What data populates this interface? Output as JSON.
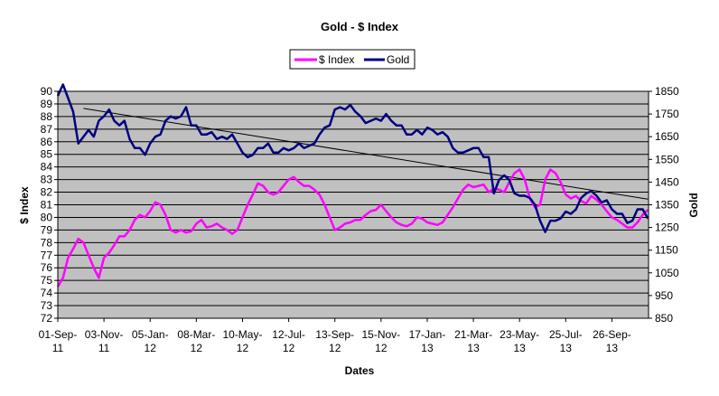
{
  "chart_data": {
    "type": "line",
    "title": "Gold - $ Index",
    "xlabel": "Dates",
    "ylabel": "$ Index",
    "y2label": "Gold",
    "ylim": [
      72,
      90
    ],
    "y2lim": [
      850,
      1850
    ],
    "yticks": [
      "72",
      "73",
      "74",
      "75",
      "76",
      "77",
      "78",
      "79",
      "80",
      "81",
      "82",
      "83",
      "84",
      "85",
      "86",
      "87",
      "88",
      "89",
      "90"
    ],
    "y2ticks": [
      "850",
      "950",
      "1050",
      "1150",
      "1250",
      "1350",
      "1450",
      "1550",
      "1650",
      "1750",
      "1850"
    ],
    "xticks": [
      {
        "date": "2011-09-01",
        "l1": "01-Sep-",
        "l2": "11"
      },
      {
        "date": "2011-11-03",
        "l1": "03-Nov-",
        "l2": "11"
      },
      {
        "date": "2012-01-05",
        "l1": "05-Jan-",
        "l2": "12"
      },
      {
        "date": "2012-03-08",
        "l1": "08-Mar-",
        "l2": "12"
      },
      {
        "date": "2012-05-10",
        "l1": "10-May-",
        "l2": "12"
      },
      {
        "date": "2012-07-12",
        "l1": "12-Jul-",
        "l2": "12"
      },
      {
        "date": "2012-09-13",
        "l1": "13-Sep-",
        "l2": "12"
      },
      {
        "date": "2012-11-15",
        "l1": "15-Nov-",
        "l2": "12"
      },
      {
        "date": "2013-01-17",
        "l1": "17-Jan-",
        "l2": "13"
      },
      {
        "date": "2013-03-21",
        "l1": "21-Mar-",
        "l2": "13"
      },
      {
        "date": "2013-05-23",
        "l1": "23-May-",
        "l2": "13"
      },
      {
        "date": "2013-07-25",
        "l1": "25-Jul-",
        "l2": "13"
      },
      {
        "date": "2013-09-26",
        "l1": "26-Sep-",
        "l2": "13"
      }
    ],
    "xlim": [
      "2011-09-01",
      "2013-11-15"
    ],
    "grid": true,
    "legend_position": "top-center",
    "plot_background": "#c0c0c0",
    "series": [
      {
        "name": "$ Index",
        "axis": "left",
        "color": "#ff00ff",
        "x": [
          "2011-09-01",
          "2011-09-08",
          "2011-09-15",
          "2011-09-22",
          "2011-09-29",
          "2011-10-06",
          "2011-10-13",
          "2011-10-20",
          "2011-10-27",
          "2011-11-03",
          "2011-11-10",
          "2011-11-17",
          "2011-11-24",
          "2011-12-01",
          "2011-12-08",
          "2011-12-15",
          "2011-12-22",
          "2011-12-29",
          "2012-01-05",
          "2012-01-12",
          "2012-01-19",
          "2012-01-26",
          "2012-02-02",
          "2012-02-09",
          "2012-02-16",
          "2012-02-23",
          "2012-03-01",
          "2012-03-08",
          "2012-03-15",
          "2012-03-22",
          "2012-03-29",
          "2012-04-05",
          "2012-04-12",
          "2012-04-19",
          "2012-04-26",
          "2012-05-03",
          "2012-05-10",
          "2012-05-17",
          "2012-05-24",
          "2012-05-31",
          "2012-06-07",
          "2012-06-14",
          "2012-06-21",
          "2012-06-28",
          "2012-07-05",
          "2012-07-12",
          "2012-07-19",
          "2012-07-26",
          "2012-08-02",
          "2012-08-09",
          "2012-08-16",
          "2012-08-23",
          "2012-08-30",
          "2012-09-06",
          "2012-09-13",
          "2012-09-20",
          "2012-09-27",
          "2012-10-04",
          "2012-10-11",
          "2012-10-18",
          "2012-10-25",
          "2012-11-01",
          "2012-11-08",
          "2012-11-15",
          "2012-11-22",
          "2012-11-29",
          "2012-12-06",
          "2012-12-13",
          "2012-12-20",
          "2012-12-27",
          "2013-01-03",
          "2013-01-10",
          "2013-01-17",
          "2013-01-24",
          "2013-01-31",
          "2013-02-07",
          "2013-02-14",
          "2013-02-21",
          "2013-02-28",
          "2013-03-07",
          "2013-03-14",
          "2013-03-21",
          "2013-03-28",
          "2013-04-04",
          "2013-04-11",
          "2013-04-18",
          "2013-04-25",
          "2013-05-02",
          "2013-05-09",
          "2013-05-16",
          "2013-05-23",
          "2013-05-30",
          "2013-06-06",
          "2013-06-13",
          "2013-06-20",
          "2013-06-27",
          "2013-07-04",
          "2013-07-11",
          "2013-07-18",
          "2013-07-25",
          "2013-08-01",
          "2013-08-08",
          "2013-08-15",
          "2013-08-22",
          "2013-08-29",
          "2013-09-05",
          "2013-09-12",
          "2013-09-19",
          "2013-09-26",
          "2013-10-03",
          "2013-10-10",
          "2013-10-17",
          "2013-10-24",
          "2013-10-31",
          "2013-11-07",
          "2013-11-14"
        ],
        "values": [
          74.5,
          75.2,
          76.8,
          77.5,
          78.3,
          78.0,
          77.0,
          76.0,
          75.2,
          76.8,
          77.2,
          77.8,
          78.5,
          78.5,
          79.0,
          79.8,
          80.2,
          80.0,
          80.5,
          81.2,
          81.0,
          80.2,
          79.0,
          78.8,
          79.0,
          78.8,
          78.9,
          79.5,
          79.8,
          79.2,
          79.3,
          79.5,
          79.2,
          79.0,
          78.7,
          79.0,
          80.0,
          81.0,
          81.8,
          82.7,
          82.5,
          82.0,
          81.8,
          82.0,
          82.5,
          83.0,
          83.2,
          82.8,
          82.5,
          82.5,
          82.2,
          81.8,
          81.0,
          80.0,
          79.0,
          79.2,
          79.5,
          79.6,
          79.8,
          79.8,
          80.2,
          80.5,
          80.6,
          81.0,
          80.5,
          80.0,
          79.6,
          79.4,
          79.3,
          79.5,
          80.0,
          79.9,
          79.6,
          79.5,
          79.4,
          79.6,
          80.2,
          80.8,
          81.5,
          82.2,
          82.6,
          82.4,
          82.5,
          82.6,
          82.0,
          82.3,
          82.2,
          82.0,
          82.8,
          83.5,
          83.8,
          83.0,
          81.5,
          80.8,
          81.0,
          83.0,
          83.8,
          83.5,
          82.8,
          81.8,
          81.5,
          81.7,
          81.3,
          81.1,
          81.7,
          81.4,
          81.0,
          80.5,
          80.0,
          79.8,
          79.5,
          79.2,
          79.2,
          79.6,
          80.2,
          80.6
        ]
      },
      {
        "name": "Gold",
        "axis": "right",
        "color": "#000080",
        "x": [
          "2011-09-01",
          "2011-09-08",
          "2011-09-15",
          "2011-09-22",
          "2011-09-29",
          "2011-10-06",
          "2011-10-13",
          "2011-10-20",
          "2011-10-27",
          "2011-11-03",
          "2011-11-10",
          "2011-11-17",
          "2011-11-24",
          "2011-12-01",
          "2011-12-08",
          "2011-12-15",
          "2011-12-22",
          "2011-12-29",
          "2012-01-05",
          "2012-01-12",
          "2012-01-19",
          "2012-01-26",
          "2012-02-02",
          "2012-02-09",
          "2012-02-16",
          "2012-02-23",
          "2012-03-01",
          "2012-03-08",
          "2012-03-15",
          "2012-03-22",
          "2012-03-29",
          "2012-04-05",
          "2012-04-12",
          "2012-04-19",
          "2012-04-26",
          "2012-05-03",
          "2012-05-10",
          "2012-05-17",
          "2012-05-24",
          "2012-05-31",
          "2012-06-07",
          "2012-06-14",
          "2012-06-21",
          "2012-06-28",
          "2012-07-05",
          "2012-07-12",
          "2012-07-19",
          "2012-07-26",
          "2012-08-02",
          "2012-08-09",
          "2012-08-16",
          "2012-08-23",
          "2012-08-30",
          "2012-09-06",
          "2012-09-13",
          "2012-09-20",
          "2012-09-27",
          "2012-10-04",
          "2012-10-11",
          "2012-10-18",
          "2012-10-25",
          "2012-11-01",
          "2012-11-08",
          "2012-11-15",
          "2012-11-22",
          "2012-11-29",
          "2012-12-06",
          "2012-12-13",
          "2012-12-20",
          "2012-12-27",
          "2013-01-03",
          "2013-01-10",
          "2013-01-17",
          "2013-01-24",
          "2013-01-31",
          "2013-02-07",
          "2013-02-14",
          "2013-02-21",
          "2013-02-28",
          "2013-03-07",
          "2013-03-14",
          "2013-03-21",
          "2013-03-28",
          "2013-04-04",
          "2013-04-11",
          "2013-04-18",
          "2013-04-25",
          "2013-05-02",
          "2013-05-09",
          "2013-05-16",
          "2013-05-23",
          "2013-05-30",
          "2013-06-06",
          "2013-06-13",
          "2013-06-20",
          "2013-06-27",
          "2013-07-04",
          "2013-07-11",
          "2013-07-18",
          "2013-07-25",
          "2013-08-01",
          "2013-08-08",
          "2013-08-15",
          "2013-08-22",
          "2013-08-29",
          "2013-09-05",
          "2013-09-12",
          "2013-09-19",
          "2013-09-26",
          "2013-10-03",
          "2013-10-10",
          "2013-10-17",
          "2013-10-24",
          "2013-10-31",
          "2013-11-07",
          "2013-11-14"
        ],
        "values": [
          1830,
          1880,
          1820,
          1760,
          1620,
          1650,
          1680,
          1650,
          1720,
          1740,
          1770,
          1720,
          1700,
          1720,
          1640,
          1600,
          1600,
          1570,
          1620,
          1650,
          1660,
          1720,
          1740,
          1730,
          1740,
          1780,
          1700,
          1700,
          1660,
          1660,
          1670,
          1640,
          1650,
          1640,
          1660,
          1620,
          1580,
          1560,
          1570,
          1600,
          1600,
          1620,
          1580,
          1580,
          1600,
          1590,
          1600,
          1620,
          1600,
          1610,
          1620,
          1660,
          1690,
          1700,
          1770,
          1780,
          1770,
          1790,
          1760,
          1740,
          1710,
          1720,
          1730,
          1720,
          1750,
          1720,
          1700,
          1700,
          1660,
          1660,
          1680,
          1660,
          1690,
          1680,
          1660,
          1670,
          1650,
          1600,
          1580,
          1580,
          1590,
          1600,
          1600,
          1560,
          1560,
          1400,
          1460,
          1480,
          1460,
          1400,
          1390,
          1390,
          1380,
          1350,
          1280,
          1230,
          1280,
          1280,
          1290,
          1320,
          1310,
          1330,
          1380,
          1400,
          1410,
          1390,
          1360,
          1370,
          1330,
          1310,
          1310,
          1270,
          1280,
          1330,
          1330,
          1290
        ]
      }
    ]
  }
}
